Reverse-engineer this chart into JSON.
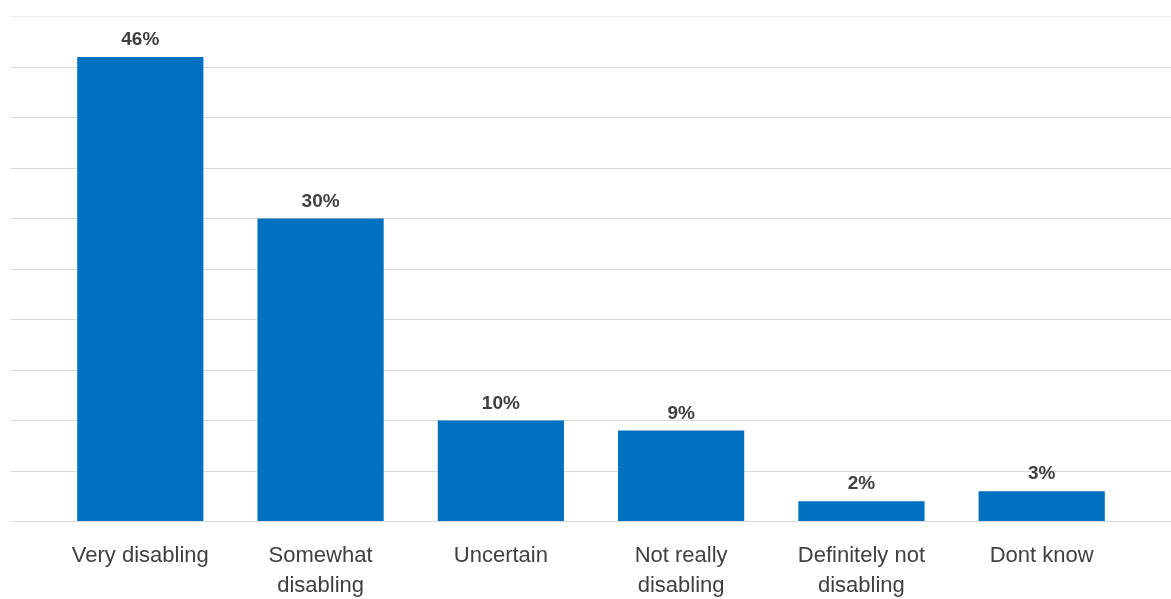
{
  "chart_data": {
    "type": "bar",
    "categories": [
      "Very disabling",
      "Somewhat disabling",
      "Uncertain",
      "Not really disabling",
      "Definitely not disabling",
      "Dont know"
    ],
    "values": [
      46,
      30,
      10,
      9,
      2,
      3
    ],
    "color": "#0070c0",
    "data_labels": true,
    "value_labels": [
      "46%",
      "30%",
      "10%",
      "9%",
      "2%",
      "3%"
    ],
    "ylim": [
      0,
      50
    ],
    "yticks": [
      {
        "value": 0,
        "label": null
      },
      {
        "value": 5,
        "label": null
      },
      {
        "value": 10,
        "label": null
      },
      {
        "value": 15,
        "label": null
      },
      {
        "value": 20,
        "label": null
      },
      {
        "value": 25,
        "label": null
      },
      {
        "value": 30,
        "label": null
      },
      {
        "value": 35,
        "label": null
      },
      {
        "value": 40,
        "label": null
      },
      {
        "value": 45,
        "label": null
      },
      {
        "value": 50,
        "label": null
      }
    ],
    "grid": "y",
    "tick_labels": "x"
  }
}
